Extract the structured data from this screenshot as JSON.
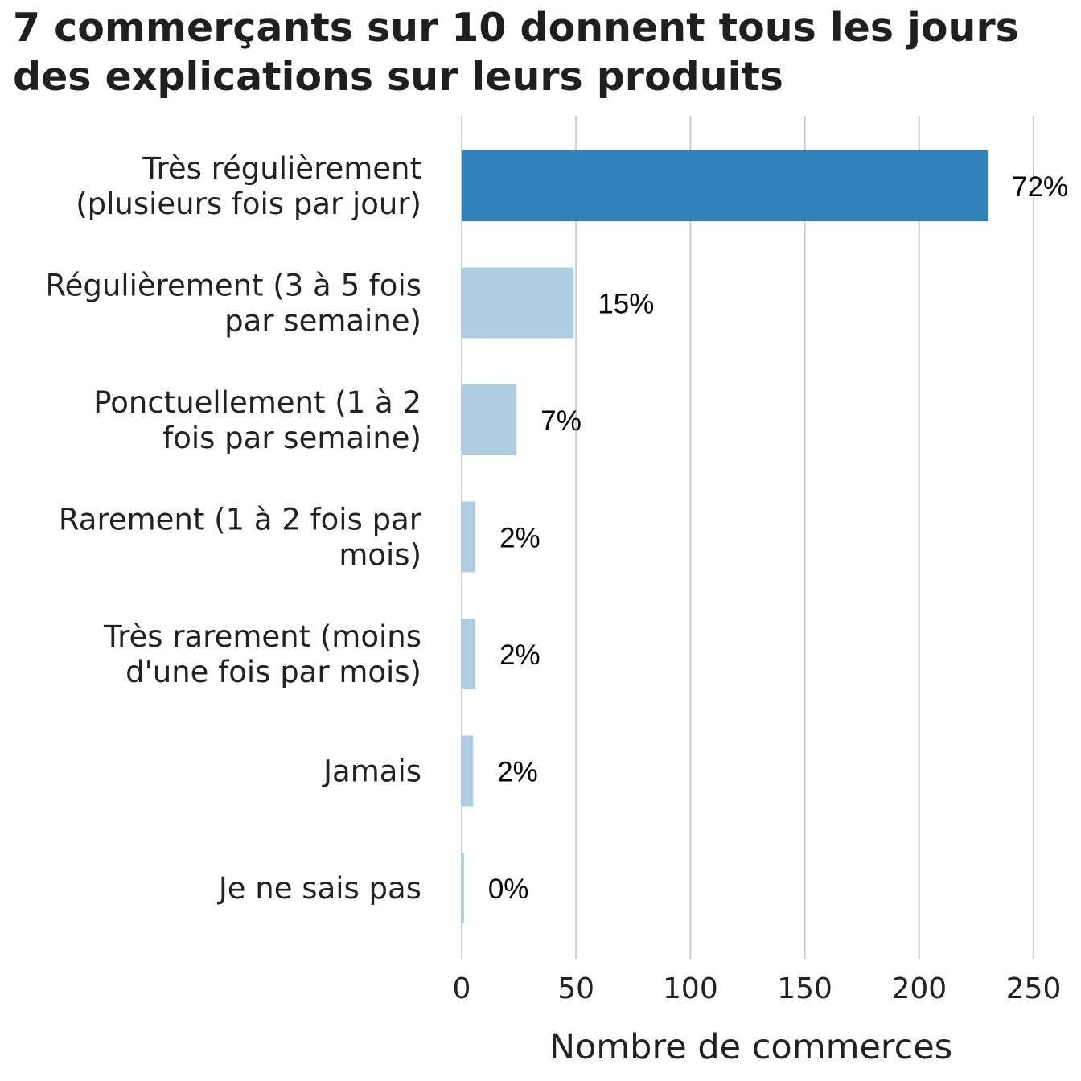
{
  "title_lines": [
    "7 commerçants sur 10 donnent tous les jours",
    "des explications sur leurs produits"
  ],
  "colors": {
    "highlight": "#3281bd",
    "default": "#aecde3",
    "grid": "#cccccc",
    "text": "#222222"
  },
  "chart_data": {
    "type": "bar",
    "orientation": "horizontal",
    "title": "7 commerçants sur 10 donnent tous les jours des explications sur leurs produits",
    "xlabel": "Nombre de commerces",
    "ylabel": "",
    "xlim": [
      0,
      250
    ],
    "x_ticks": [
      0,
      50,
      100,
      150,
      200,
      250
    ],
    "grid": "vertical",
    "categories": [
      [
        "Très régulièrement",
        "(plusieurs fois par jour)"
      ],
      [
        "Régulièrement (3 à 5 fois",
        "par semaine)"
      ],
      [
        "Ponctuellement (1 à 2",
        "fois par semaine)"
      ],
      [
        "Rarement (1 à 2 fois par",
        "mois)"
      ],
      [
        "Très rarement (moins",
        "d'une fois par mois)"
      ],
      [
        "Jamais"
      ],
      [
        "Je ne sais pas"
      ]
    ],
    "values": [
      230,
      49,
      24,
      6,
      6,
      5,
      1
    ],
    "data_labels": [
      "72%",
      "15%",
      "7%",
      "2%",
      "2%",
      "2%",
      "0%"
    ],
    "highlighted": [
      true,
      false,
      false,
      false,
      false,
      false,
      false
    ]
  }
}
